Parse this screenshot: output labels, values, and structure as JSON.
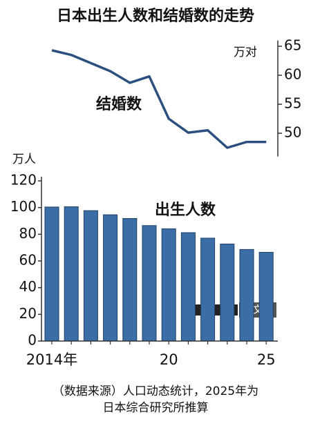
{
  "title": "日本出生人数和结婚数的走势",
  "source": "（数据来源）人口动态统计，2025年为\n日本综合研究所推算",
  "watermark": "中文网",
  "chart_data": [
    {
      "type": "line",
      "y_label": "万对",
      "categories": [
        "2014年",
        null,
        null,
        null,
        null,
        null,
        "20",
        null,
        null,
        null,
        null,
        "25"
      ],
      "series": [
        {
          "name": "结婚数",
          "color": "#2b4f7e",
          "values": [
            64.3,
            63.5,
            62.1,
            60.7,
            58.7,
            59.8,
            52.5,
            50.1,
            50.5,
            47.5,
            48.5,
            48.5
          ]
        }
      ],
      "ylim": [
        46,
        66
      ],
      "yticks": [
        50,
        55,
        60,
        65
      ]
    },
    {
      "type": "bar",
      "y_label": "万人",
      "categories": [
        "2014年",
        null,
        null,
        null,
        null,
        null,
        "20",
        null,
        null,
        null,
        null,
        "25"
      ],
      "series": [
        {
          "name": "出生人数",
          "color": "#3b6ea6",
          "values": [
            100.4,
            100.6,
            97.7,
            94.6,
            91.8,
            86.5,
            84.1,
            81.2,
            77.1,
            72.7,
            68.6,
            66.5
          ]
        }
      ],
      "ylim": [
        0,
        120
      ],
      "yticks": [
        0,
        20,
        40,
        60,
        80,
        100,
        120
      ]
    }
  ]
}
